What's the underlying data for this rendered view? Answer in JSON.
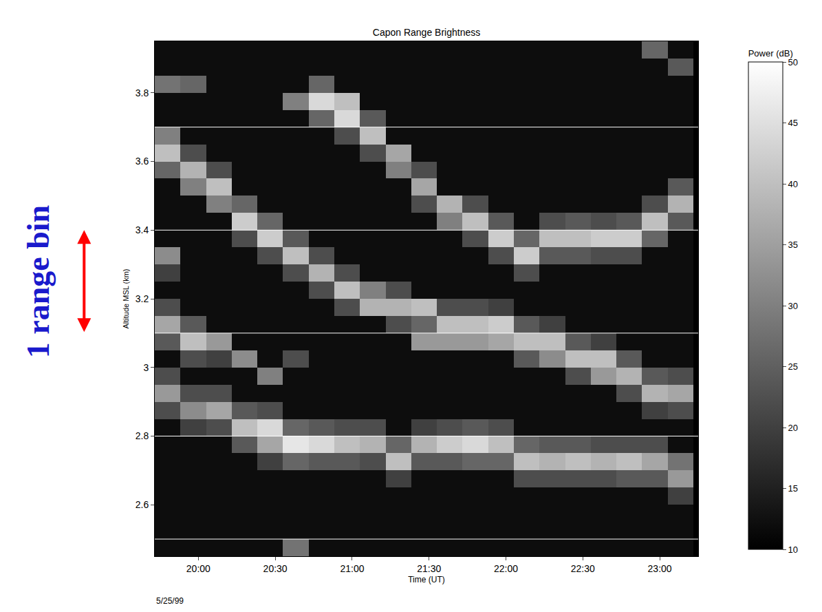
{
  "chart_data": {
    "type": "heatmap",
    "title": "Capon Range Brightness",
    "x_label": "Time (UT)",
    "y_label": "Altitude MSL (km)",
    "colors": [
      "#000000",
      "#ffffff"
    ],
    "x": [
      1188,
      1198,
      1208,
      1218,
      1228,
      1238,
      1248,
      1258,
      1268,
      1278,
      1288,
      1298,
      1308,
      1318,
      1328,
      1338,
      1348,
      1358,
      1368,
      1378,
      1388
    ],
    "y": [
      2.475,
      2.525,
      2.575,
      2.625,
      2.675,
      2.725,
      2.775,
      2.825,
      2.875,
      2.925,
      2.975,
      3.025,
      3.075,
      3.125,
      3.175,
      3.225,
      3.275,
      3.325,
      3.375,
      3.425,
      3.475,
      3.525,
      3.575,
      3.625,
      3.675,
      3.725,
      3.775,
      3.825,
      3.875,
      3.925
    ],
    "z": [
      [
        12,
        12,
        12,
        12,
        12,
        28,
        12,
        12,
        12,
        12,
        12,
        12,
        12,
        12,
        12,
        12,
        12,
        12,
        12,
        12,
        12
      ],
      [
        12,
        12,
        12,
        12,
        12,
        12,
        12,
        12,
        12,
        12,
        12,
        12,
        12,
        12,
        12,
        12,
        12,
        12,
        12,
        12,
        12
      ],
      [
        12,
        12,
        12,
        12,
        12,
        12,
        12,
        12,
        12,
        12,
        12,
        12,
        12,
        12,
        12,
        12,
        12,
        12,
        12,
        12,
        12
      ],
      [
        12,
        12,
        12,
        12,
        12,
        12,
        12,
        12,
        12,
        12,
        12,
        12,
        12,
        12,
        12,
        12,
        12,
        12,
        12,
        12,
        20
      ],
      [
        12,
        12,
        12,
        12,
        12,
        12,
        12,
        12,
        12,
        20,
        12,
        12,
        12,
        12,
        22,
        22,
        22,
        22,
        24,
        24,
        34
      ],
      [
        12,
        12,
        12,
        12,
        20,
        26,
        24,
        24,
        22,
        40,
        24,
        24,
        26,
        26,
        40,
        38,
        40,
        38,
        40,
        36,
        28
      ],
      [
        12,
        12,
        12,
        24,
        36,
        46,
        44,
        40,
        38,
        26,
        38,
        42,
        44,
        40,
        26,
        24,
        24,
        22,
        22,
        22,
        12
      ],
      [
        12,
        20,
        22,
        40,
        44,
        26,
        24,
        22,
        22,
        12,
        20,
        22,
        24,
        22,
        12,
        12,
        12,
        12,
        12,
        12,
        12
      ],
      [
        22,
        32,
        36,
        24,
        22,
        12,
        12,
        12,
        12,
        12,
        12,
        12,
        12,
        12,
        12,
        12,
        12,
        12,
        12,
        20,
        22
      ],
      [
        34,
        22,
        22,
        12,
        12,
        12,
        12,
        12,
        12,
        12,
        12,
        12,
        12,
        12,
        12,
        12,
        12,
        12,
        22,
        38,
        36
      ],
      [
        22,
        12,
        12,
        12,
        30,
        12,
        12,
        12,
        12,
        12,
        12,
        12,
        12,
        12,
        12,
        12,
        22,
        34,
        38,
        24,
        22
      ],
      [
        12,
        22,
        20,
        32,
        12,
        22,
        12,
        12,
        12,
        12,
        12,
        12,
        12,
        12,
        24,
        32,
        40,
        40,
        24,
        12,
        12
      ],
      [
        24,
        40,
        34,
        12,
        12,
        12,
        12,
        12,
        12,
        12,
        34,
        34,
        34,
        36,
        40,
        40,
        24,
        20,
        12,
        12,
        12
      ],
      [
        36,
        24,
        12,
        12,
        12,
        12,
        12,
        12,
        12,
        22,
        26,
        40,
        40,
        42,
        24,
        20,
        12,
        12,
        12,
        12,
        12
      ],
      [
        22,
        12,
        12,
        12,
        12,
        12,
        12,
        22,
        38,
        38,
        40,
        22,
        22,
        20,
        12,
        12,
        12,
        12,
        12,
        12,
        12
      ],
      [
        12,
        12,
        12,
        12,
        12,
        12,
        22,
        40,
        30,
        22,
        12,
        12,
        12,
        12,
        12,
        12,
        12,
        12,
        12,
        12,
        12
      ],
      [
        20,
        12,
        12,
        12,
        12,
        22,
        38,
        22,
        12,
        12,
        12,
        12,
        12,
        12,
        22,
        12,
        12,
        12,
        12,
        12,
        12
      ],
      [
        32,
        12,
        12,
        12,
        22,
        40,
        22,
        12,
        12,
        12,
        12,
        12,
        12,
        22,
        42,
        24,
        24,
        22,
        22,
        12,
        12
      ],
      [
        12,
        12,
        12,
        22,
        42,
        24,
        12,
        12,
        12,
        12,
        12,
        12,
        22,
        42,
        26,
        40,
        40,
        42,
        42,
        26,
        12
      ],
      [
        12,
        12,
        12,
        42,
        26,
        12,
        12,
        12,
        12,
        12,
        12,
        30,
        40,
        24,
        12,
        22,
        24,
        22,
        24,
        40,
        24
      ],
      [
        12,
        12,
        30,
        26,
        12,
        12,
        12,
        12,
        12,
        12,
        22,
        38,
        22,
        12,
        12,
        12,
        12,
        12,
        12,
        22,
        38
      ],
      [
        12,
        30,
        40,
        12,
        12,
        12,
        12,
        12,
        12,
        12,
        36,
        12,
        12,
        12,
        12,
        12,
        12,
        12,
        12,
        12,
        24
      ],
      [
        26,
        38,
        22,
        12,
        12,
        12,
        12,
        12,
        12,
        30,
        22,
        12,
        12,
        12,
        12,
        12,
        12,
        12,
        12,
        12,
        12
      ],
      [
        40,
        22,
        12,
        12,
        12,
        12,
        12,
        12,
        22,
        36,
        12,
        12,
        12,
        12,
        12,
        12,
        12,
        12,
        12,
        12,
        12
      ],
      [
        30,
        12,
        12,
        12,
        12,
        12,
        12,
        22,
        40,
        12,
        12,
        12,
        12,
        12,
        12,
        12,
        12,
        12,
        12,
        12,
        12
      ],
      [
        12,
        12,
        12,
        12,
        12,
        12,
        26,
        44,
        24,
        12,
        12,
        12,
        12,
        12,
        12,
        12,
        12,
        12,
        12,
        12,
        12
      ],
      [
        12,
        12,
        12,
        12,
        12,
        30,
        44,
        40,
        12,
        12,
        12,
        12,
        12,
        12,
        12,
        12,
        12,
        12,
        12,
        12,
        12
      ],
      [
        28,
        26,
        12,
        12,
        12,
        12,
        26,
        12,
        12,
        12,
        12,
        12,
        12,
        12,
        12,
        12,
        12,
        12,
        12,
        12,
        12
      ],
      [
        12,
        12,
        12,
        12,
        12,
        12,
        12,
        12,
        12,
        12,
        12,
        12,
        12,
        12,
        12,
        12,
        12,
        12,
        12,
        12,
        24
      ],
      [
        12,
        12,
        12,
        12,
        12,
        12,
        12,
        12,
        12,
        12,
        12,
        12,
        12,
        12,
        12,
        12,
        12,
        12,
        12,
        26,
        12
      ]
    ],
    "xlim": [
      1183,
      1395
    ],
    "xticks": [
      {
        "value": 1200,
        "label": "20:00"
      },
      {
        "value": 1230,
        "label": "20:30"
      },
      {
        "value": 1260,
        "label": "21:00"
      },
      {
        "value": 1290,
        "label": "21:30"
      },
      {
        "value": 1320,
        "label": "22:00"
      },
      {
        "value": 1350,
        "label": "22:30"
      },
      {
        "value": 1380,
        "label": "23:00"
      }
    ],
    "ylim": [
      2.45,
      3.95
    ],
    "yticks": [
      2.6,
      2.8,
      3,
      3.2,
      3.4,
      3.6,
      3.8
    ],
    "grid": false,
    "colorbar": {
      "title": "Power (dB)",
      "range": [
        10,
        50
      ],
      "ticks": [
        10,
        15,
        20,
        25,
        30,
        35,
        40,
        45,
        50
      ]
    },
    "range_bin_edges": [
      2.5,
      2.8,
      3.1,
      3.4,
      3.7
    ],
    "annotations": [
      {
        "text": "1 range bin",
        "y": [
          3.1,
          3.4
        ],
        "color": "#1a1acc"
      },
      {
        "text": "5/25/99"
      }
    ]
  }
}
